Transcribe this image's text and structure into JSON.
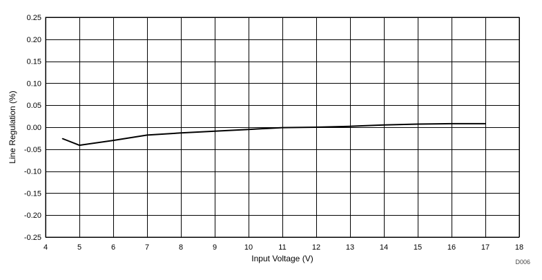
{
  "chart_data": {
    "type": "line",
    "title": "",
    "xlabel": "Input Voltage (V)",
    "ylabel": "Line Regulation (%)",
    "xlim": [
      4,
      18
    ],
    "ylim": [
      -0.25,
      0.25
    ],
    "x_ticks": [
      4,
      5,
      6,
      7,
      8,
      9,
      10,
      11,
      12,
      13,
      14,
      15,
      16,
      17,
      18
    ],
    "y_ticks": [
      "0.25",
      "0.20",
      "0.15",
      "0.10",
      "0.05",
      "0.00",
      "-0.05",
      "-0.10",
      "-0.15",
      "-0.20",
      "-0.25"
    ],
    "grid": true,
    "series": [
      {
        "x": [
          4.5,
          5,
          6,
          7,
          8,
          9,
          10,
          11,
          12,
          13,
          14,
          15,
          16,
          17
        ],
        "y": [
          -0.026,
          -0.041,
          -0.03,
          -0.018,
          -0.013,
          -0.009,
          -0.005,
          -0.001,
          0.0,
          0.002,
          0.005,
          0.007,
          0.008,
          0.008
        ]
      }
    ],
    "figure_code": "D006"
  }
}
